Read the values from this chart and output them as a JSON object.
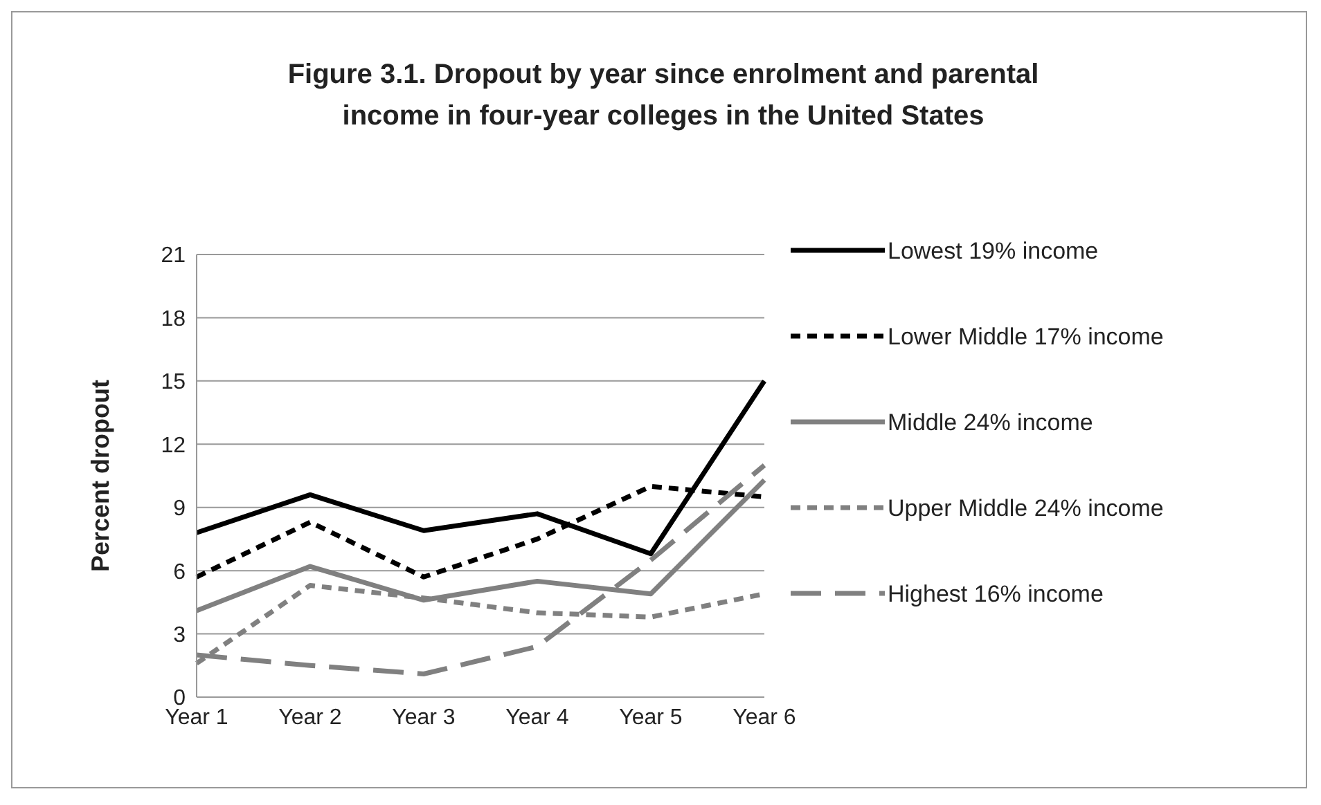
{
  "chart_data": {
    "type": "line",
    "title": "Figure 3.1. Dropout by year since enrolment and parental income in four-year colleges in the United States",
    "ylabel": "Percent dropout",
    "categories": [
      "Year 1",
      "Year 2",
      "Year 3",
      "Year 4",
      "Year 5",
      "Year 6"
    ],
    "series": [
      {
        "name": "Lowest 19% income",
        "color": "#000000",
        "line_style": "solid",
        "values": [
          7.8,
          9.6,
          7.9,
          8.7,
          6.8,
          15.0
        ]
      },
      {
        "name": "Lower Middle 17% income",
        "color": "#000000",
        "line_style": "dashed",
        "values": [
          5.7,
          8.3,
          5.7,
          7.5,
          10.0,
          9.5
        ]
      },
      {
        "name": "Middle 24% income",
        "color": "#808080",
        "line_style": "solid",
        "values": [
          4.1,
          6.2,
          4.6,
          5.5,
          4.9,
          10.3
        ]
      },
      {
        "name": "Upper Middle 24% income",
        "color": "#808080",
        "line_style": "dashed",
        "values": [
          1.6,
          5.3,
          4.7,
          4.0,
          3.8,
          4.9
        ]
      },
      {
        "name": "Highest 16% income",
        "color": "#808080",
        "line_style": "long-dashed",
        "values": [
          2.0,
          1.5,
          1.1,
          2.4,
          6.5,
          11.0
        ]
      }
    ],
    "ylim": [
      0,
      21
    ],
    "yticks": [
      0,
      3,
      6,
      9,
      12,
      15,
      18,
      21
    ],
    "grid": "y",
    "legend": "right",
    "marker": "none"
  }
}
